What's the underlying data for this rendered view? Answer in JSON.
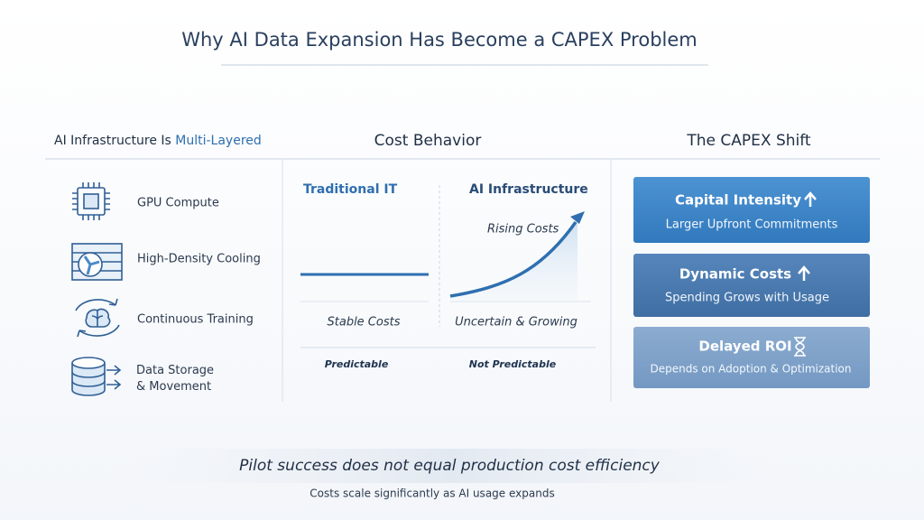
{
  "title": "Why AI Data Expansion Has Become a CAPEX Problem",
  "left": {
    "heading_prefix": "AI Infrastructure Is",
    "heading_highlight": "Multi-Layered",
    "items": [
      "GPU Compute",
      "High-Density Cooling",
      "Continuous Training",
      "Data Storage & Movement"
    ]
  },
  "middle": {
    "heading": "Cost Behavior",
    "columns": [
      {
        "title": "Traditional IT",
        "label": "Stable Costs",
        "note": "Predictable"
      },
      {
        "title": "AI Infrastructure",
        "annotation": "Rising Costs",
        "label": "Uncertain & Growing",
        "note": "Not Predictable"
      }
    ]
  },
  "right": {
    "heading": "The CAPEX Shift",
    "cards": [
      {
        "title": "Capital Intensity",
        "subtitle": "Larger Upfront Commitments"
      },
      {
        "title": "Dynamic Costs",
        "subtitle": "Spending Grows with Usage"
      },
      {
        "title": "Delayed ROI",
        "subtitle": "Depends on Adoption & Optimization"
      }
    ]
  },
  "footer": {
    "headline": "Pilot success does not equal production cost efficiency",
    "caption": "Costs scale significantly as AI usage expands"
  }
}
